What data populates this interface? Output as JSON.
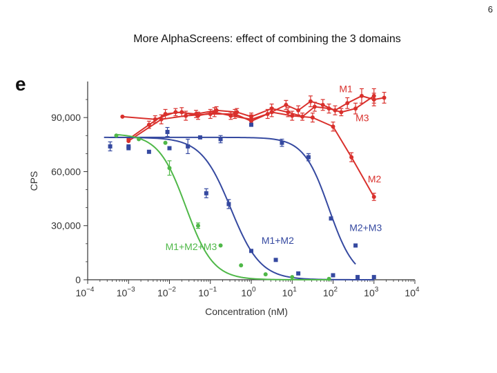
{
  "slide": {
    "number": "6",
    "title": "More AlphaScreens:  effect of combining the 3 domains"
  },
  "chart_data": {
    "type": "scatter",
    "panel": "e",
    "xlabel": "Concentration (nM)",
    "ylabel": "CPS",
    "xscale": "log",
    "xlim_log10": [
      -4,
      4
    ],
    "ylim": [
      0,
      110000
    ],
    "x_ticks": [
      {
        "base": "10",
        "exp": "−4",
        "log": -4
      },
      {
        "base": "10",
        "exp": "−3",
        "log": -3
      },
      {
        "base": "10",
        "exp": "−2",
        "log": -2
      },
      {
        "base": "10",
        "exp": "−1",
        "log": -1
      },
      {
        "base": "10",
        "exp": "0",
        "log": 0
      },
      {
        "base": "10",
        "exp": "1",
        "log": 1
      },
      {
        "base": "10",
        "exp": "2",
        "log": 2
      },
      {
        "base": "10",
        "exp": "3",
        "log": 3
      },
      {
        "base": "10",
        "exp": "4",
        "log": 4
      }
    ],
    "y_ticks": [
      {
        "label": "0",
        "value": 0
      },
      {
        "label": "30,000",
        "value": 30000
      },
      {
        "label": "60,000",
        "value": 60000
      },
      {
        "label": "90,000",
        "value": 90000
      }
    ],
    "series": [
      {
        "name": "M1",
        "color": "#d9302c",
        "label_pos_log10": 2.15,
        "label_value": 104000,
        "connect": "line",
        "points": [
          [
            -3.0,
            78000,
            0
          ],
          [
            -2.5,
            86000,
            2000
          ],
          [
            -2.1,
            92000,
            2500
          ],
          [
            -1.7,
            93000,
            2500
          ],
          [
            -1.3,
            91000,
            2000
          ],
          [
            -0.9,
            93000,
            2500
          ],
          [
            -0.5,
            91000,
            2000
          ],
          [
            0.0,
            89000,
            2500
          ],
          [
            0.4,
            92000,
            2500
          ],
          [
            0.85,
            97000,
            2500
          ],
          [
            1.15,
            94000,
            2500
          ],
          [
            1.45,
            99000,
            3000
          ],
          [
            1.75,
            97000,
            3000
          ],
          [
            2.05,
            94000,
            2500
          ],
          [
            2.35,
            98000,
            3000
          ],
          [
            2.7,
            102000,
            4000
          ],
          [
            3.0,
            100000,
            3500
          ],
          [
            3.25,
            101000,
            3000
          ]
        ]
      },
      {
        "name": "M3",
        "color": "#d9302c",
        "label_pos_log10": 2.55,
        "label_value": 88000,
        "connect": "line",
        "points": [
          [
            -3.15,
            90500,
            0
          ],
          [
            -2.35,
            89000,
            2000
          ],
          [
            -1.85,
            93000,
            2000
          ],
          [
            -1.35,
            92000,
            2000
          ],
          [
            -0.85,
            94000,
            2000
          ],
          [
            -0.35,
            93000,
            2000
          ],
          [
            0.0,
            90500,
            2000
          ],
          [
            0.5,
            95000,
            2500
          ],
          [
            0.9,
            93000,
            2500
          ],
          [
            1.25,
            90500,
            2000
          ],
          [
            1.55,
            96000,
            2500
          ],
          [
            1.9,
            95000,
            2500
          ],
          [
            2.2,
            93000,
            2000
          ],
          [
            2.55,
            95000,
            3000
          ],
          [
            3.0,
            102000,
            4000
          ]
        ]
      },
      {
        "name": "M2",
        "color": "#d9302c",
        "label_pos_log10": 2.85,
        "label_value": 54000,
        "connect": "line",
        "points": [
          [
            -3.0,
            77000,
            0
          ],
          [
            -2.2,
            89000,
            2500
          ],
          [
            -1.6,
            91000,
            2500
          ],
          [
            -1.0,
            92000,
            2500
          ],
          [
            -0.4,
            92000,
            2500
          ],
          [
            0.0,
            88000,
            2500
          ],
          [
            0.5,
            93000,
            2500
          ],
          [
            1.0,
            91000,
            2500
          ],
          [
            1.5,
            90000,
            2500
          ],
          [
            2.0,
            85000,
            2500
          ],
          [
            2.45,
            68000,
            2500
          ],
          [
            3.0,
            46000,
            2000
          ]
        ]
      },
      {
        "name": "M2+M3",
        "color": "#3549a0",
        "label_pos_log10": 2.4,
        "label_value": 27000,
        "connect": "sigmoid",
        "fit": {
          "top": 79000,
          "bottom": 0,
          "log_ic50": 1.9,
          "hill": 1.4,
          "x_range": [
            -3.45,
            2.55
          ]
        },
        "points": [
          [
            -3.45,
            74000,
            2500
          ],
          [
            -3.0,
            74000,
            0
          ],
          [
            -2.5,
            71000,
            0
          ],
          [
            -2.05,
            82000,
            2500
          ],
          [
            -1.55,
            74000,
            4000
          ],
          [
            -1.25,
            79000,
            0
          ],
          [
            -0.75,
            78000,
            2000
          ],
          [
            0.0,
            86000,
            0
          ],
          [
            0.75,
            76000,
            2000
          ],
          [
            1.4,
            68000,
            2000
          ],
          [
            1.95,
            34000,
            0
          ],
          [
            2.55,
            19000,
            0
          ]
        ]
      },
      {
        "name": "M1+M2",
        "color": "#3549a0",
        "label_pos_log10": 0.25,
        "label_value": 20000,
        "connect": "sigmoid",
        "fit": {
          "top": 79000,
          "bottom": 0,
          "log_ic50": -0.5,
          "hill": 1.2,
          "x_range": [
            -3.6,
            3.0
          ]
        },
        "points": [
          [
            -3.0,
            73000,
            0
          ],
          [
            -2.0,
            73000,
            0
          ],
          [
            -1.1,
            48000,
            2500
          ],
          [
            -0.55,
            42000,
            2500
          ],
          [
            0.0,
            16000,
            0
          ],
          [
            0.6,
            11000,
            0
          ],
          [
            1.15,
            3500,
            0
          ],
          [
            2.0,
            2500,
            0
          ],
          [
            2.6,
            1500,
            0
          ],
          [
            3.0,
            1500,
            0
          ]
        ]
      },
      {
        "name": "M1+M2+M3",
        "color": "#4fb848",
        "label_pos_log10": -2.1,
        "label_value": 16500,
        "connect": "sigmoid",
        "fit": {
          "top": 81000,
          "bottom": 0,
          "log_ic50": -1.6,
          "hill": 1.3,
          "x_range": [
            -3.3,
            1.9
          ]
        },
        "points": [
          [
            -3.3,
            80000,
            0
          ],
          [
            -2.75,
            78000,
            0
          ],
          [
            -2.1,
            76000,
            0
          ],
          [
            -2.0,
            62000,
            4000
          ],
          [
            -1.3,
            30000,
            1500
          ],
          [
            -0.75,
            19000,
            0
          ],
          [
            -0.25,
            8000,
            0
          ],
          [
            0.35,
            3000,
            0
          ],
          [
            1.0,
            1500,
            0
          ],
          [
            1.9,
            500,
            0
          ]
        ]
      }
    ]
  }
}
